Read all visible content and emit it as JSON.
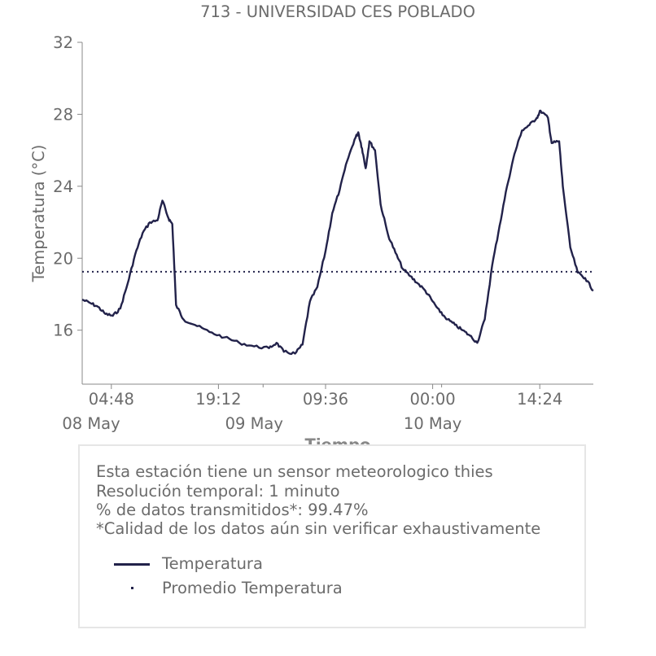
{
  "chart_data": {
    "type": "line",
    "title": "713 - UNIVERSIDAD CES POBLADO",
    "xlabel": "Tiempo",
    "ylabel": "Temperatura (°C)",
    "ylim": [
      13,
      32
    ],
    "yticks": [
      16,
      20,
      24,
      28,
      32
    ],
    "xlim": [
      "2023-05-08T00:53",
      "2023-05-10T21:36"
    ],
    "xticks": [
      {
        "t": "2023-05-08T04:48",
        "label": "04:48",
        "date": "08 May"
      },
      {
        "t": "2023-05-08T19:12",
        "label": "19:12",
        "date": ""
      },
      {
        "t": "2023-05-09T09:36",
        "label": "09:36",
        "date": ""
      },
      {
        "t": "2023-05-10T00:00",
        "label": "00:00",
        "date": ""
      },
      {
        "t": "2023-05-10T14:24",
        "label": "14:24",
        "date": ""
      }
    ],
    "date_labels": [
      {
        "t": "2023-05-08T00:00",
        "label": "08 May"
      },
      {
        "t": "2023-05-09T00:00",
        "label": "09 May"
      },
      {
        "t": "2023-05-10T00:00",
        "label": "10 May"
      }
    ],
    "color": "#22224a",
    "series": [
      {
        "name": "Temperatura",
        "style": "solid",
        "points": [
          [
            "2023-05-08T00:53",
            17.7
          ],
          [
            "2023-05-08T02:00",
            17.5
          ],
          [
            "2023-05-08T03:00",
            17.3
          ],
          [
            "2023-05-08T04:00",
            16.9
          ],
          [
            "2023-05-08T05:00",
            16.8
          ],
          [
            "2023-05-08T06:00",
            17.2
          ],
          [
            "2023-05-08T07:00",
            18.6
          ],
          [
            "2023-05-08T08:00",
            20.2
          ],
          [
            "2023-05-08T09:00",
            21.4
          ],
          [
            "2023-05-08T10:00",
            22.0
          ],
          [
            "2023-05-08T11:00",
            22.1
          ],
          [
            "2023-05-08T11:40",
            23.2
          ],
          [
            "2023-05-08T12:30",
            22.2
          ],
          [
            "2023-05-08T13:00",
            21.9
          ],
          [
            "2023-05-08T13:30",
            17.4
          ],
          [
            "2023-05-08T14:30",
            16.6
          ],
          [
            "2023-05-08T16:00",
            16.3
          ],
          [
            "2023-05-08T18:00",
            15.9
          ],
          [
            "2023-05-08T20:00",
            15.6
          ],
          [
            "2023-05-08T22:00",
            15.3
          ],
          [
            "2023-05-09T00:00",
            15.1
          ],
          [
            "2023-05-09T02:00",
            15.0
          ],
          [
            "2023-05-09T03:00",
            15.3
          ],
          [
            "2023-05-09T04:00",
            14.8
          ],
          [
            "2023-05-09T05:30",
            14.7
          ],
          [
            "2023-05-09T06:30",
            15.2
          ],
          [
            "2023-05-09T07:30",
            17.6
          ],
          [
            "2023-05-09T08:30",
            18.4
          ],
          [
            "2023-05-09T09:36",
            20.4
          ],
          [
            "2023-05-09T10:30",
            22.5
          ],
          [
            "2023-05-09T11:30",
            23.8
          ],
          [
            "2023-05-09T12:30",
            25.4
          ],
          [
            "2023-05-09T13:30",
            26.6
          ],
          [
            "2023-05-09T14:00",
            27.0
          ],
          [
            "2023-05-09T14:30",
            26.1
          ],
          [
            "2023-05-09T15:00",
            25.0
          ],
          [
            "2023-05-09T15:30",
            26.5
          ],
          [
            "2023-05-09T16:15",
            26.0
          ],
          [
            "2023-05-09T17:00",
            23.0
          ],
          [
            "2023-05-09T18:00",
            21.3
          ],
          [
            "2023-05-09T19:00",
            20.3
          ],
          [
            "2023-05-09T20:00",
            19.4
          ],
          [
            "2023-05-09T21:00",
            19.0
          ],
          [
            "2023-05-09T22:00",
            18.6
          ],
          [
            "2023-05-09T23:00",
            18.2
          ],
          [
            "2023-05-10T00:00",
            17.6
          ],
          [
            "2023-05-10T01:00",
            17.0
          ],
          [
            "2023-05-10T02:00",
            16.6
          ],
          [
            "2023-05-10T03:00",
            16.3
          ],
          [
            "2023-05-10T04:00",
            16.0
          ],
          [
            "2023-05-10T05:00",
            15.7
          ],
          [
            "2023-05-10T06:00",
            15.3
          ],
          [
            "2023-05-10T07:00",
            16.6
          ],
          [
            "2023-05-10T08:00",
            19.6
          ],
          [
            "2023-05-10T09:00",
            21.8
          ],
          [
            "2023-05-10T10:00",
            24.0
          ],
          [
            "2023-05-10T11:00",
            25.8
          ],
          [
            "2023-05-10T12:00",
            27.1
          ],
          [
            "2023-05-10T13:00",
            27.4
          ],
          [
            "2023-05-10T14:00",
            27.8
          ],
          [
            "2023-05-10T14:30",
            28.2
          ],
          [
            "2023-05-10T15:30",
            27.8
          ],
          [
            "2023-05-10T16:00",
            26.4
          ],
          [
            "2023-05-10T17:00",
            26.5
          ],
          [
            "2023-05-10T17:30",
            24.0
          ],
          [
            "2023-05-10T18:30",
            20.6
          ],
          [
            "2023-05-10T19:30",
            19.2
          ],
          [
            "2023-05-10T20:30",
            18.9
          ],
          [
            "2023-05-10T21:36",
            18.2
          ]
        ]
      },
      {
        "name": "Promedio Temperatura",
        "style": "dotted",
        "value": 19.25
      }
    ]
  },
  "info": {
    "lines": [
      "Esta estación tiene un sensor meteorologico thies",
      "Resolución temporal: 1 minuto",
      "% de datos transmitidos*: 99.47%",
      "*Calidad de los datos aún sin verificar exhaustivamente"
    ]
  },
  "legend": {
    "temp_label": "Temperatura",
    "avg_label": "Promedio Temperatura"
  }
}
